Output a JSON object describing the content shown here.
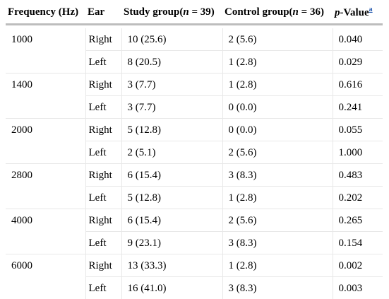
{
  "table": {
    "headers": {
      "frequency": "Frequency (Hz)",
      "ear": "Ear",
      "study_prefix": "Study group(",
      "study_n": "n",
      "study_suffix": " = 39)",
      "control_prefix": "Control group(",
      "control_n": "n",
      "control_suffix": " = 36)",
      "p_italic": "p",
      "p_rest": "-Value",
      "p_footnote": "a"
    },
    "rows": [
      {
        "frequency": "1000",
        "ear": "Right",
        "study": "10 (25.6)",
        "control": "2 (5.6)",
        "p": "0.040"
      },
      {
        "frequency": "",
        "ear": "Left",
        "study": "8 (20.5)",
        "control": "1 (2.8)",
        "p": "0.029"
      },
      {
        "frequency": "1400",
        "ear": "Right",
        "study": "3 (7.7)",
        "control": "1 (2.8)",
        "p": "0.616"
      },
      {
        "frequency": "",
        "ear": "Left",
        "study": "3 (7.7)",
        "control": "0 (0.0)",
        "p": "0.241"
      },
      {
        "frequency": "2000",
        "ear": "Right",
        "study": "5 (12.8)",
        "control": "0 (0.0)",
        "p": "0.055"
      },
      {
        "frequency": "",
        "ear": "Left",
        "study": "2 (5.1)",
        "control": "2 (5.6)",
        "p": "1.000"
      },
      {
        "frequency": "2800",
        "ear": "Right",
        "study": "6 (15.4)",
        "control": "3 (8.3)",
        "p": "0.483"
      },
      {
        "frequency": "",
        "ear": "Left",
        "study": "5 (12.8)",
        "control": "1 (2.8)",
        "p": "0.202"
      },
      {
        "frequency": "4000",
        "ear": "Right",
        "study": "6 (15.4)",
        "control": "2 (5.6)",
        "p": "0.265"
      },
      {
        "frequency": "",
        "ear": "Left",
        "study": "9 (23.1)",
        "control": "3 (8.3)",
        "p": "0.154"
      },
      {
        "frequency": "6000",
        "ear": "Right",
        "study": "13 (33.3)",
        "control": "1 (2.8)",
        "p": "0.002"
      },
      {
        "frequency": "",
        "ear": "Left",
        "study": "16 (41.0)",
        "control": "3 (8.3)",
        "p": "0.003"
      }
    ]
  }
}
